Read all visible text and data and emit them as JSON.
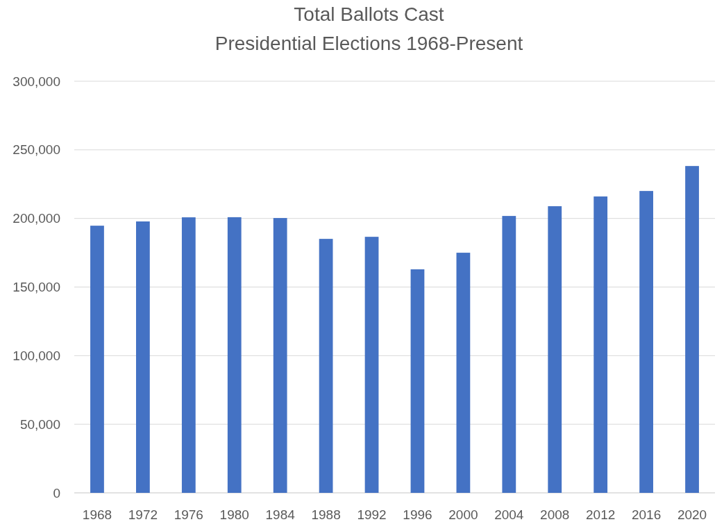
{
  "chart_data": {
    "type": "bar",
    "title": "Total Ballots Cast",
    "subtitle": "Presidential Elections 1968-Present",
    "categories": [
      "1968",
      "1972",
      "1976",
      "1980",
      "1984",
      "1988",
      "1992",
      "1996",
      "2000",
      "2004",
      "2008",
      "2012",
      "2016",
      "2020"
    ],
    "values": [
      194700,
      197800,
      200800,
      200900,
      200300,
      185100,
      186600,
      162900,
      175000,
      201800,
      208900,
      216000,
      220000,
      238200
    ],
    "color": "#4472c4",
    "ylim": [
      0,
      300000
    ],
    "yticks": [
      {
        "value": 0,
        "label": "0"
      },
      {
        "value": 50000,
        "label": "50,000"
      },
      {
        "value": 100000,
        "label": "100,000"
      },
      {
        "value": 150000,
        "label": "150,000"
      },
      {
        "value": 200000,
        "label": "200,000"
      },
      {
        "value": 250000,
        "label": "250,000"
      },
      {
        "value": 300000,
        "label": "300,000"
      }
    ],
    "grid": "y"
  }
}
